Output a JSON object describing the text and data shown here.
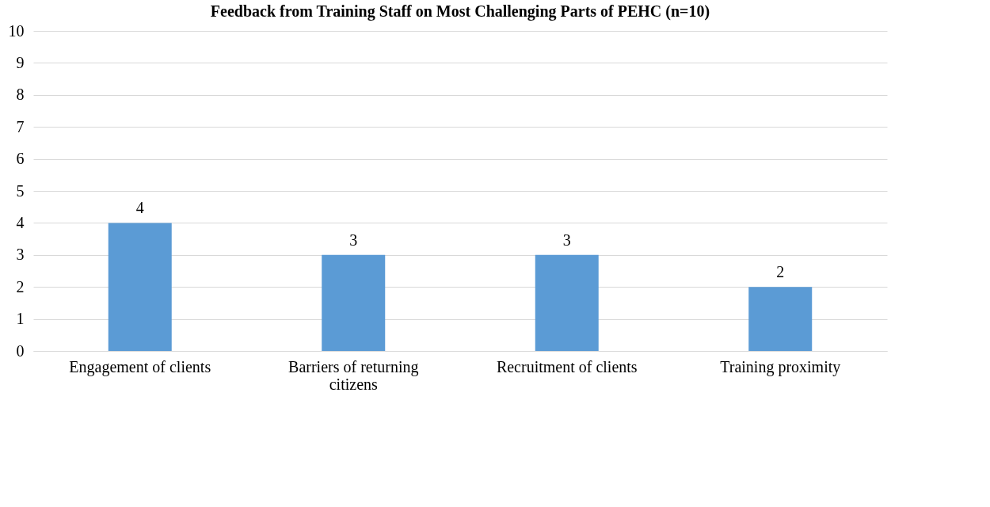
{
  "chart_data": {
    "type": "bar",
    "title": "Feedback from Training Staff on Most Challenging Parts of PEHC (n=10)",
    "categories": [
      "Engagement of clients",
      "Barriers of returning citizens",
      "Recruitment of clients",
      "Training proximity"
    ],
    "values": [
      4,
      3,
      3,
      2
    ],
    "color": "#5b9bd5",
    "ylim": [
      0,
      10
    ],
    "yticks": [
      0,
      1,
      2,
      3,
      4,
      5,
      6,
      7,
      8,
      9,
      10
    ],
    "grid": "y",
    "data_labels": true
  }
}
